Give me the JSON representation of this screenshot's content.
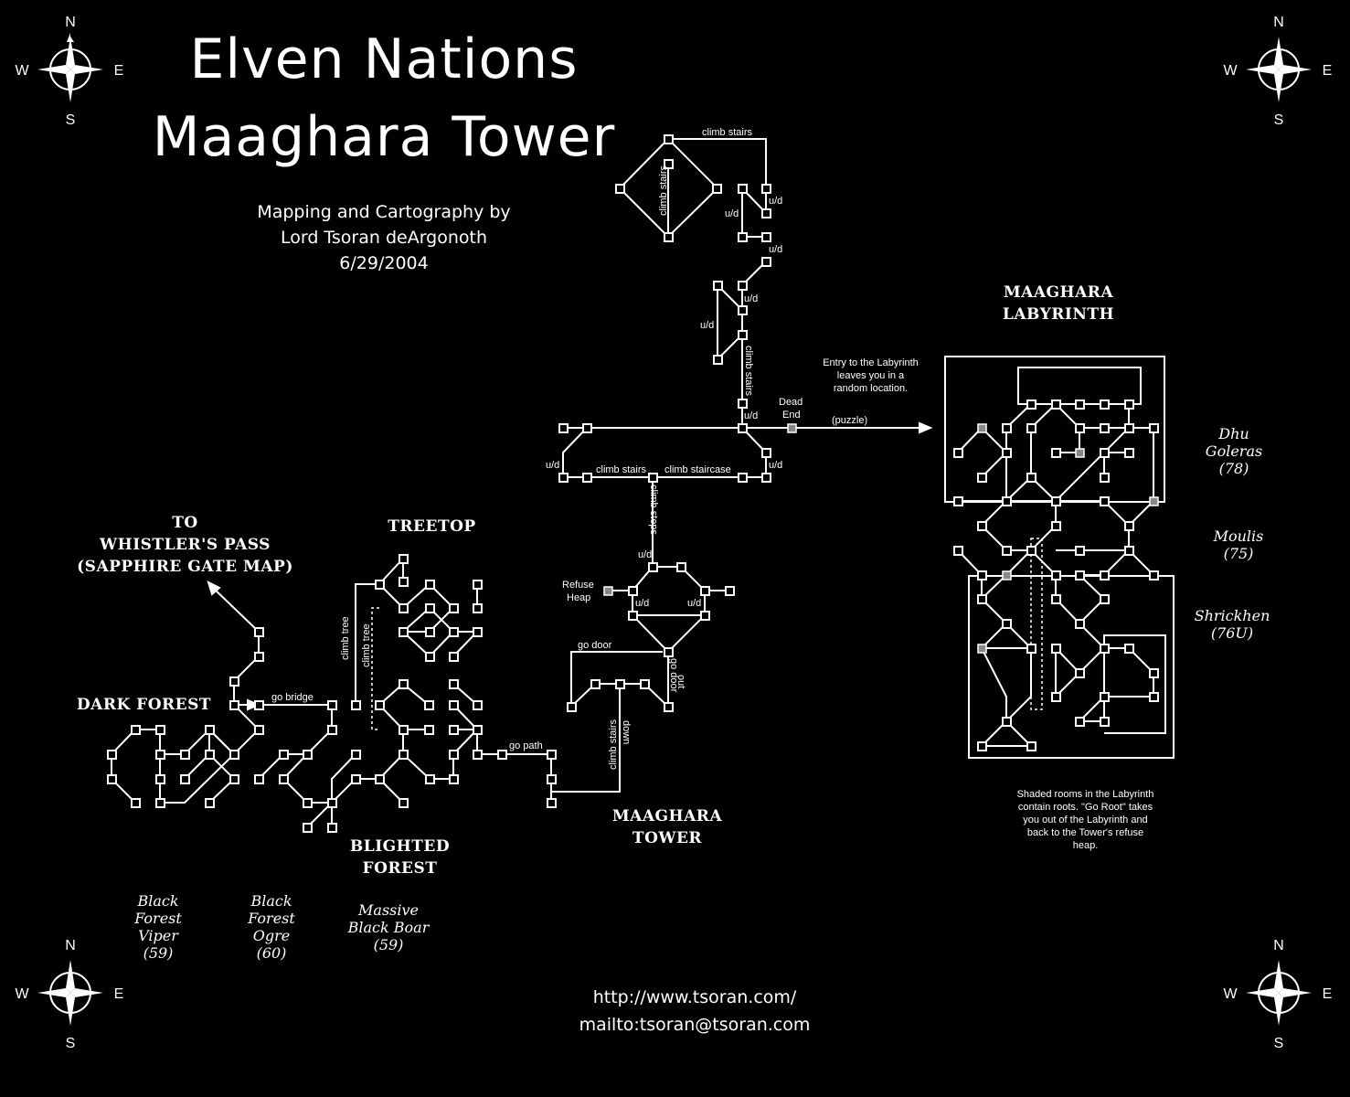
{
  "title": {
    "line1": "Elven Nations",
    "line2": "Maaghara Tower"
  },
  "credits": {
    "line1": "Mapping and Cartography by",
    "line2": "Lord Tsoran deArgonoth",
    "date": "6/29/2004"
  },
  "compass": {
    "n": "N",
    "s": "S",
    "e": "E",
    "w": "W"
  },
  "zones": {
    "labyrinth": {
      "line1": "Maaghara",
      "line2": "Labyrinth"
    },
    "to_whistler": {
      "line1": "to",
      "line2": "Whistler's Pass",
      "line3": "(Sapphire Gate map)"
    },
    "treetop": "Treetop",
    "dark_forest": "Dark Forest",
    "blighted": {
      "line1": "Blighted",
      "line2": "Forest"
    },
    "tower": {
      "line1": "Maaghara",
      "line2": "Tower"
    }
  },
  "mobs": {
    "dhu": {
      "line1": "Dhu",
      "line2": "Goleras",
      "line3": "(78)"
    },
    "moulis": {
      "line1": "Moulis",
      "line2": "(75)"
    },
    "shrickhen": {
      "line1": "Shrickhen",
      "line2": "(76U)"
    },
    "viper": {
      "line1": "Black",
      "line2": "Forest",
      "line3": "Viper",
      "line4": "(59)"
    },
    "ogre": {
      "line1": "Black",
      "line2": "Forest",
      "line3": "Ogre",
      "line4": "(60)"
    },
    "boar": {
      "line1": "Massive",
      "line2": "Black Boar",
      "line3": "(59)"
    }
  },
  "notes": {
    "entry": {
      "line1": "Entry to the Labyrinth",
      "line2": "leaves you in a",
      "line3": "random location."
    },
    "shaded": {
      "line1": "Shaded rooms in the Labyrinth",
      "line2": "contain roots.  \"Go Root\" takes",
      "line3": "you out of the Labyrinth and",
      "line4": "back to the Tower's refuse",
      "line5": "heap."
    }
  },
  "map_labels": {
    "climb_stairs": "climb stairs",
    "climb_staircase": "climb staircase",
    "climb_steps": "climb steps",
    "ud": "u/d",
    "dead_end_1": "Dead",
    "dead_end_2": "End",
    "puzzle": "(puzzle)",
    "refuse_1": "Refuse",
    "refuse_2": "Heap",
    "go_door": "go door",
    "out": "out",
    "down": "down",
    "go_path": "go path",
    "go_bridge": "go bridge",
    "climb_tree": "climb tree"
  },
  "links": {
    "url": "http://www.tsoran.com/",
    "mail": "mailto:tsoran@tsoran.com"
  }
}
